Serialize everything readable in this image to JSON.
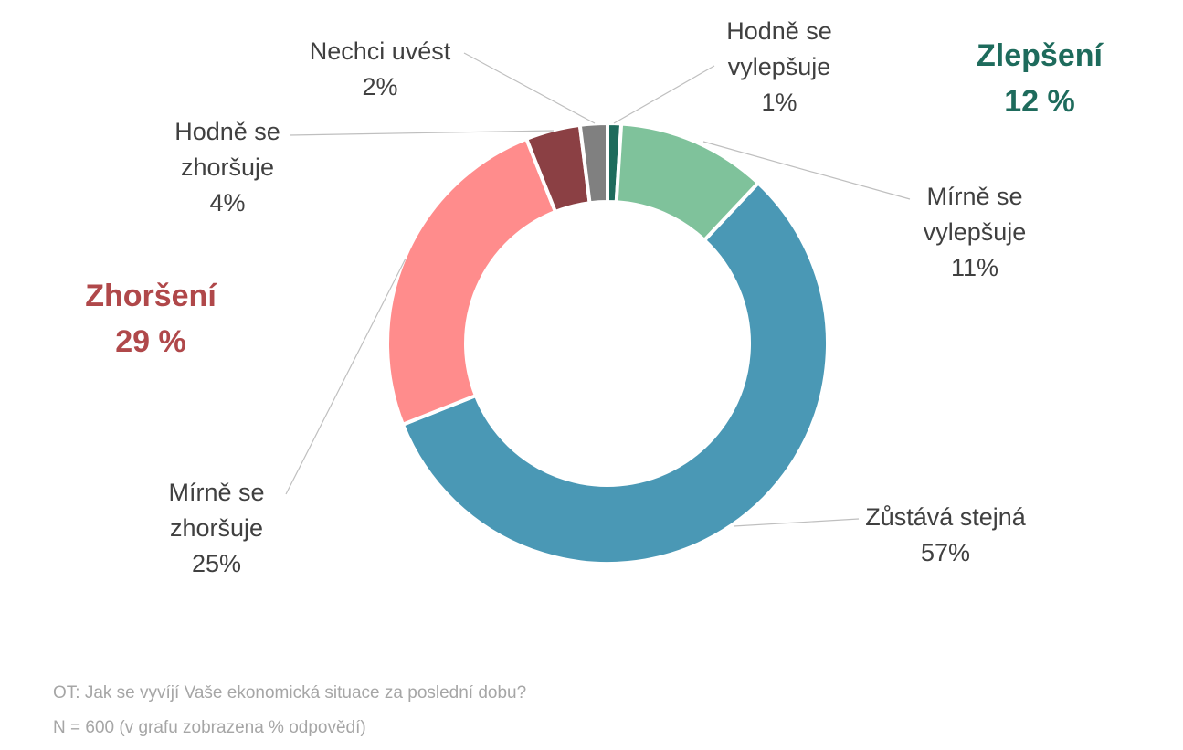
{
  "chart_data": {
    "type": "pie",
    "variant": "donut",
    "slices": [
      {
        "label": [
          "Hodně se",
          "vylepšuje"
        ],
        "value_label": "1%",
        "value": 1,
        "color": "#1e6b5c"
      },
      {
        "label": [
          "Mírně se",
          "vylepšuje"
        ],
        "value_label": "11%",
        "value": 11,
        "color": "#7fc29b"
      },
      {
        "label": [
          "Zůstává stejná"
        ],
        "value_label": "57%",
        "value": 57,
        "color": "#4a98b5"
      },
      {
        "label": [
          "Mírně se",
          "zhoršuje"
        ],
        "value_label": "25%",
        "value": 25,
        "color": "#ff8c8c"
      },
      {
        "label": [
          "Hodně se",
          "zhoršuje"
        ],
        "value_label": "4%",
        "value": 4,
        "color": "#8b4044"
      },
      {
        "label": [
          "Nechci uvést"
        ],
        "value_label": "2%",
        "value": 2,
        "color": "#808080"
      }
    ],
    "groups": [
      {
        "name": "Zlepšení",
        "value_label": "12 %",
        "color": "#1e6b5c"
      },
      {
        "name": "Zhoršení",
        "value_label": "29 %",
        "color": "#b0484a"
      }
    ]
  },
  "footnotes": {
    "question": "OT: Jak se vyvíjí Vaše ekonomická situace za poslední dobu?",
    "sample": "N = 600 (v grafu zobrazena % odpovědí)"
  }
}
